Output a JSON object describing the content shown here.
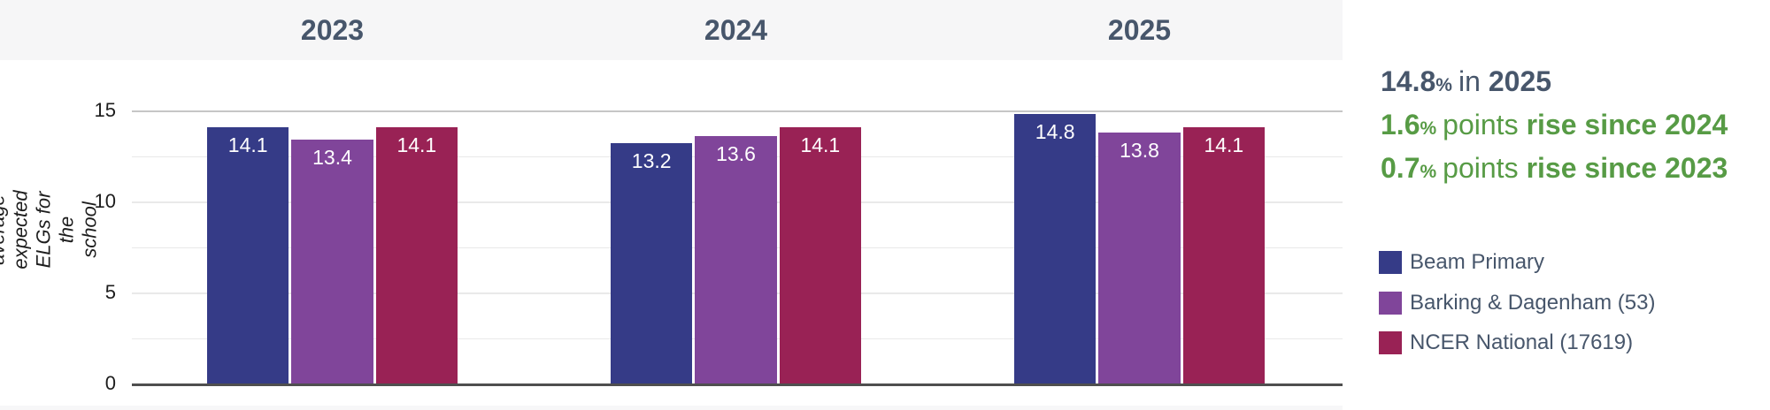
{
  "chart_data": {
    "type": "bar",
    "categories": [
      "2023",
      "2024",
      "2025"
    ],
    "series": [
      {
        "name": "Beam Primary",
        "color": "#353b87",
        "values": [
          14.1,
          13.2,
          14.8
        ]
      },
      {
        "name": "Barking & Dagenham (53)",
        "color": "#80459a",
        "values": [
          13.4,
          13.6,
          13.8
        ]
      },
      {
        "name": "NCER National (17619)",
        "color": "#992255",
        "values": [
          14.1,
          14.1,
          14.1
        ]
      }
    ],
    "ylabel": "The average expected ELGs for the school",
    "yticks": [
      0,
      5,
      10,
      15
    ],
    "minor_gridlines": [
      2.5,
      7.5,
      12.5
    ],
    "ylim": [
      0,
      15
    ],
    "grid": true,
    "legend_position": "right",
    "value_label_format": "one-decimal-inside-bar-top"
  },
  "summary": {
    "lines": [
      {
        "value": "14.8",
        "unit": "%",
        "mid": "in",
        "tail": "2025",
        "color": "#47566b"
      },
      {
        "value": "1.6",
        "unit": "%",
        "mid": "points",
        "tail": "rise since 2024",
        "color": "#579b45"
      },
      {
        "value": "0.7",
        "unit": "%",
        "mid": "points",
        "tail": "rise since 2023",
        "color": "#579b45"
      }
    ]
  },
  "colors": {
    "header_band": "#f6f6f7",
    "slate_text": "#47566b",
    "green_text": "#579b45",
    "axis_line": "#4f4f4f",
    "gridline_minor": "#e9e9e9",
    "gridline_top": "#c6c6c6"
  }
}
